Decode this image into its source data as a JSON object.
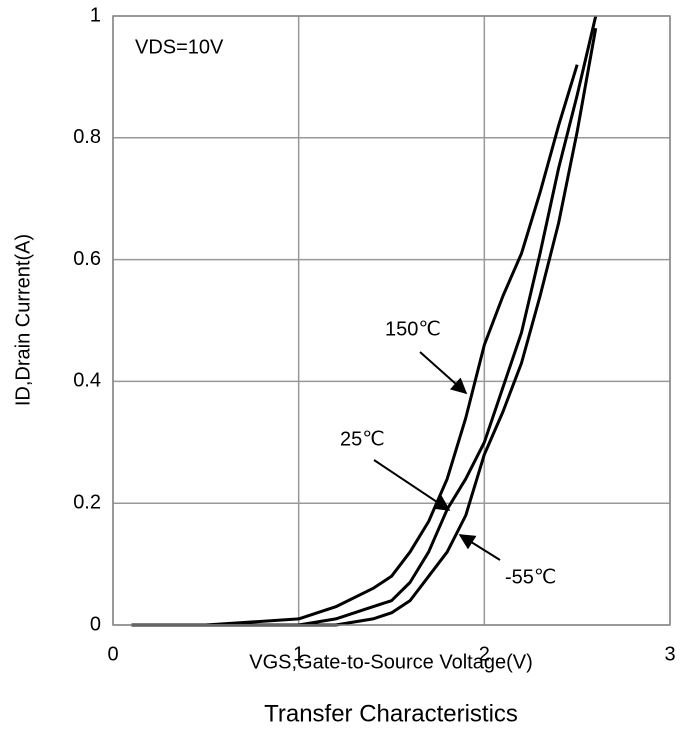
{
  "chart_data": {
    "type": "line",
    "title": "Transfer Characteristics",
    "x_label": "VGS,Gate-to-Source Voltage(V)",
    "y_label": "ID,Drain Current(A)",
    "annotation": "VDS=10V",
    "x": [
      0.1,
      0.5,
      1,
      1.2,
      1.4,
      1.5,
      1.6,
      1.7,
      1.8,
      1.9,
      2,
      2.1,
      2.2,
      2.3,
      2.4,
      2.5,
      2.6
    ],
    "series": [
      {
        "name": "150℃",
        "color": "#000000",
        "values": [
          0,
          0,
          0.01,
          0.03,
          0.06,
          0.08,
          0.12,
          0.17,
          0.24,
          0.34,
          0.46,
          0.54,
          0.61,
          0.71,
          0.82,
          0.92,
          null
        ]
      },
      {
        "name": "25℃",
        "color": "#000000",
        "values": [
          0,
          0,
          0,
          0.01,
          0.03,
          0.04,
          0.07,
          0.12,
          0.19,
          0.24,
          0.3,
          0.39,
          0.48,
          0.61,
          0.75,
          0.87,
          1.0
        ]
      },
      {
        "name": "-55℃",
        "color": "#000000",
        "values": [
          0,
          0,
          0,
          0,
          0.01,
          0.02,
          0.04,
          0.08,
          0.12,
          0.18,
          0.28,
          0.35,
          0.43,
          0.54,
          0.66,
          0.81,
          0.98
        ]
      }
    ],
    "xlim": [
      0,
      3
    ],
    "xticks": [
      0,
      1,
      2,
      3
    ],
    "ylim": [
      0,
      1
    ],
    "yticks": [
      0,
      0.2,
      0.4,
      0.6,
      0.8,
      1
    ],
    "grid": true
  }
}
